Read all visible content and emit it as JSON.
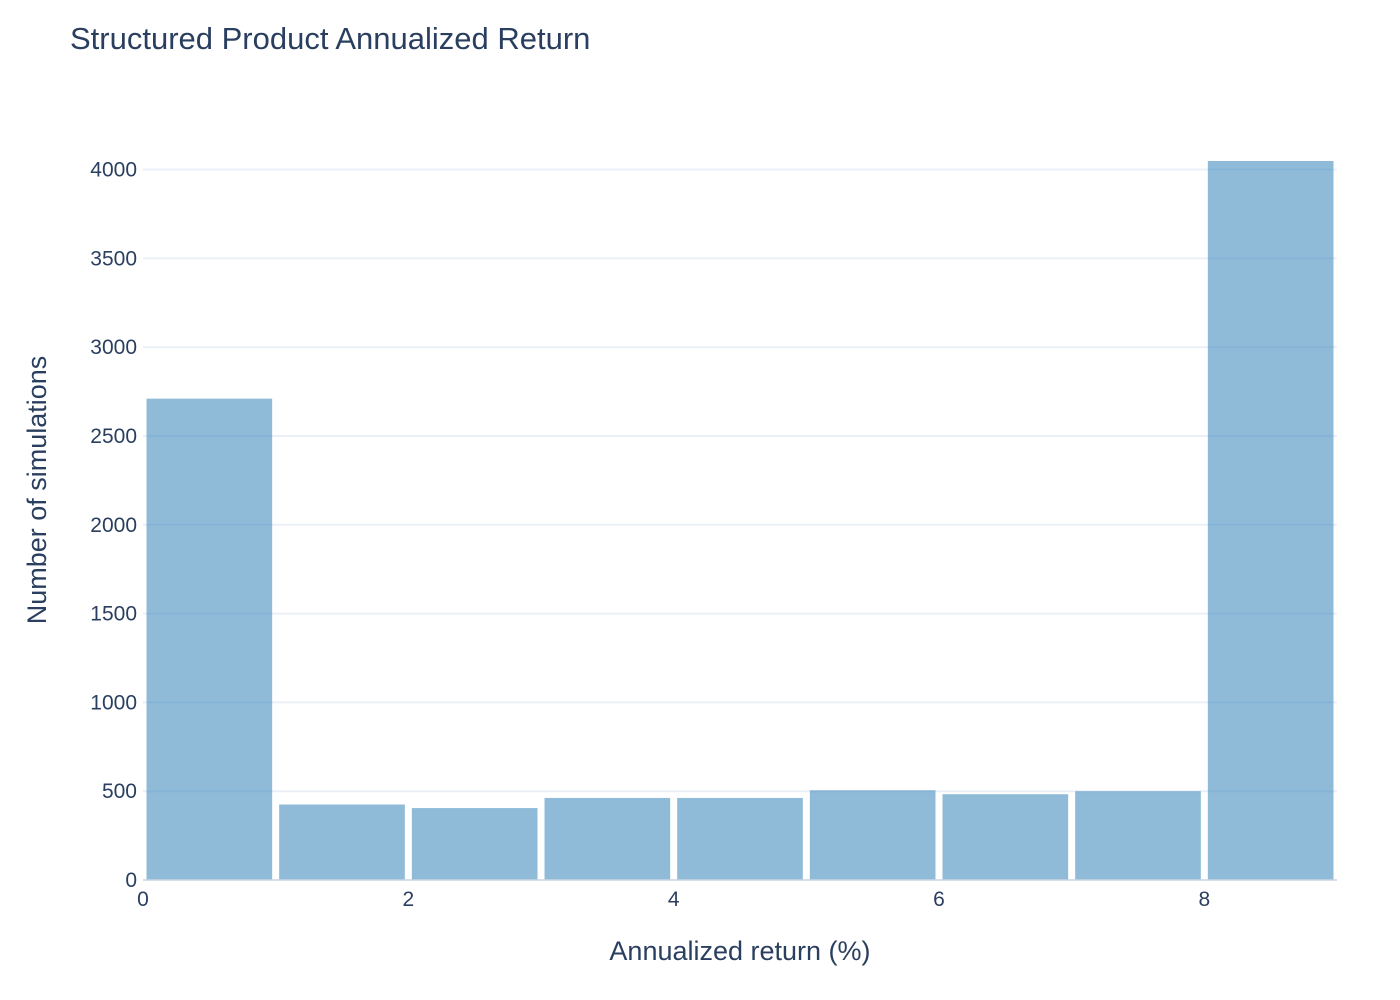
{
  "chart_data": {
    "type": "bar",
    "title": "Structured Product Annualized Return",
    "xlabel": "Annualized return (%)",
    "ylabel": "Number of simulations",
    "bin_edges": [
      0,
      1,
      2,
      3,
      4,
      5,
      6,
      7,
      8,
      9
    ],
    "values": [
      2710,
      425,
      405,
      462,
      462,
      505,
      483,
      500,
      4048
    ],
    "xlim": [
      0,
      9
    ],
    "ylim": [
      0,
      4200
    ],
    "x_ticks": [
      0,
      2,
      4,
      6,
      8
    ],
    "y_ticks": [
      0,
      500,
      1000,
      1500,
      2000,
      2500,
      3000,
      3500,
      4000
    ],
    "bar_color": "#1f77b4",
    "grid": true
  }
}
